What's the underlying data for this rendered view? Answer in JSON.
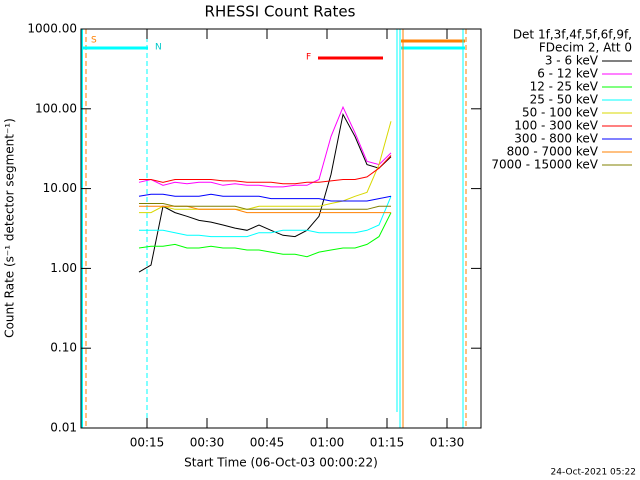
{
  "chart_data": {
    "type": "line",
    "title": "RHESSI Count Rates",
    "x_label": "Start Time (06-Oct-03 00:00:22)",
    "y_label": "Count Rate (s⁻¹ detector segment⁻¹)",
    "legend_header": [
      "Det 1f,3f,4f,5f,6f,9f,",
      "FDecim 2, Att 0"
    ],
    "annotations": [
      "S",
      "N",
      "F"
    ],
    "footer": "24-Oct-2021 05:22",
    "log_scale_y": true,
    "xlim": [
      -1.5,
      98.5
    ],
    "xticks": [
      {
        "value": 15,
        "label": "00:15"
      },
      {
        "value": 30,
        "label": "00:30"
      },
      {
        "value": 45,
        "label": "00:45"
      },
      {
        "value": 60,
        "label": "01:00"
      },
      {
        "value": 75,
        "label": "01:15"
      },
      {
        "value": 90,
        "label": "01:30"
      }
    ],
    "ylim": [
      0.01,
      1000
    ],
    "yticks": [
      {
        "value": 0.01,
        "label": "0.01"
      },
      {
        "value": 0.1,
        "label": "0.10"
      },
      {
        "value": 1,
        "label": "1.00"
      },
      {
        "value": 10,
        "label": "10.00"
      },
      {
        "value": 100,
        "label": "100.00"
      },
      {
        "value": 1000,
        "label": "1000.00"
      }
    ],
    "x": [
      13,
      16,
      19,
      22,
      25,
      28,
      31,
      34,
      37,
      40,
      43,
      46,
      49,
      52,
      55,
      58,
      61,
      64,
      67,
      70,
      73,
      76
    ],
    "series": [
      {
        "name": "3 - 6 keV",
        "color": "#000000",
        "values": [
          0.9,
          1.1,
          6,
          5,
          4.5,
          4,
          3.8,
          3.5,
          3.2,
          3,
          3.5,
          3,
          2.6,
          2.5,
          3,
          4.5,
          15,
          85,
          45,
          20,
          18,
          25
        ]
      },
      {
        "name": "6 - 12 keV",
        "color": "#ff00ff",
        "values": [
          12,
          13,
          11,
          12,
          11.5,
          12,
          12,
          11,
          11.5,
          11,
          11,
          10.5,
          10.5,
          11,
          11,
          13,
          45,
          105,
          50,
          22,
          20,
          28
        ]
      },
      {
        "name": "12 - 25 keV",
        "color": "#00ff00",
        "values": [
          1.8,
          1.9,
          1.9,
          2,
          1.8,
          1.8,
          1.9,
          1.8,
          1.8,
          1.7,
          1.7,
          1.6,
          1.5,
          1.5,
          1.4,
          1.6,
          1.7,
          1.8,
          1.8,
          2,
          2.5,
          5
        ]
      },
      {
        "name": "25 - 50 keV",
        "color": "#00ffff",
        "values": [
          3,
          3,
          3,
          2.8,
          2.6,
          2.6,
          2.5,
          2.5,
          2.5,
          2.5,
          2.8,
          2.8,
          3,
          3,
          3,
          2.8,
          2.8,
          2.8,
          2.8,
          3,
          3.5,
          8
        ]
      },
      {
        "name": "50 - 100 keV",
        "color": "#d8d800",
        "values": [
          5,
          5,
          6,
          5.5,
          5.5,
          5.5,
          5.5,
          5.5,
          5.5,
          5.5,
          6,
          6,
          6,
          6,
          6,
          6,
          6.5,
          7,
          8,
          9,
          20,
          70
        ]
      },
      {
        "name": "100 - 300 keV",
        "color": "#ff0000",
        "values": [
          13,
          13,
          12,
          13,
          13,
          13,
          13,
          12.5,
          12.5,
          12,
          12,
          12,
          11.5,
          11.5,
          12,
          12,
          12.5,
          13,
          13,
          14,
          18,
          26
        ]
      },
      {
        "name": "300 - 800 keV",
        "color": "#0000ff",
        "values": [
          8,
          8.5,
          8.5,
          8,
          8,
          8,
          8.5,
          8,
          8,
          8,
          8,
          7.5,
          7.5,
          7.5,
          7.5,
          7.5,
          7,
          7,
          7,
          7,
          7.5,
          8
        ]
      },
      {
        "name": "800 - 7000 keV",
        "color": "#ff8000",
        "values": [
          6,
          6,
          6,
          6,
          6,
          5.5,
          5.5,
          5.5,
          5.5,
          5,
          5,
          5,
          5,
          5,
          5,
          5,
          5,
          5,
          5,
          5,
          5,
          5
        ]
      },
      {
        "name": "7000 - 15000 keV",
        "color": "#808000",
        "values": [
          6.5,
          6.5,
          6.5,
          6,
          6,
          6,
          6,
          6,
          6,
          5.5,
          5.5,
          5.5,
          5.5,
          5.5,
          5.5,
          5.5,
          5.5,
          5.5,
          5.5,
          5.5,
          6,
          6
        ]
      }
    ]
  }
}
